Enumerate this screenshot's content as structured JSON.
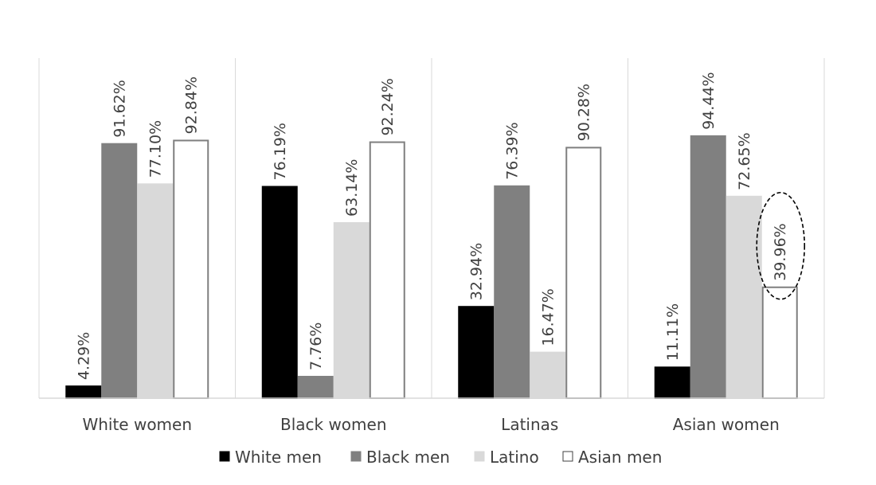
{
  "chart_data": {
    "type": "bar",
    "title": "",
    "xlabel": "",
    "ylabel": "",
    "ylim": [
      0,
      100
    ],
    "grid": false,
    "legend_position": "bottom",
    "categories": [
      "White women",
      "Black women",
      "Latinas",
      "Asian women"
    ],
    "series": [
      {
        "name": "White men",
        "color": "#000000",
        "stroke": "#000000",
        "values": [
          4.29,
          76.19,
          32.94,
          11.11
        ],
        "labels": [
          "4.29%",
          "76.19%",
          "32.94%",
          "11.11%"
        ]
      },
      {
        "name": "Black men",
        "color": "#808080",
        "stroke": "#808080",
        "values": [
          91.62,
          7.76,
          76.39,
          94.44
        ],
        "labels": [
          "91.62%",
          "7.76%",
          "76.39%",
          "94.44%"
        ]
      },
      {
        "name": "Latino",
        "color": "#d9d9d9",
        "stroke": "#d9d9d9",
        "values": [
          77.1,
          63.14,
          16.47,
          72.65
        ],
        "labels": [
          "77.10%",
          "63.14%",
          "16.47%",
          "72.65%"
        ]
      },
      {
        "name": "Asian men",
        "color": "#ffffff",
        "stroke": "#7f7f7f",
        "values": [
          92.84,
          92.24,
          90.28,
          39.96
        ],
        "labels": [
          "92.84%",
          "92.24%",
          "90.28%",
          "39.96%"
        ]
      }
    ],
    "annotations": [
      {
        "type": "dashed-ellipse",
        "series": "Asian men",
        "category": "Asian women"
      }
    ]
  }
}
